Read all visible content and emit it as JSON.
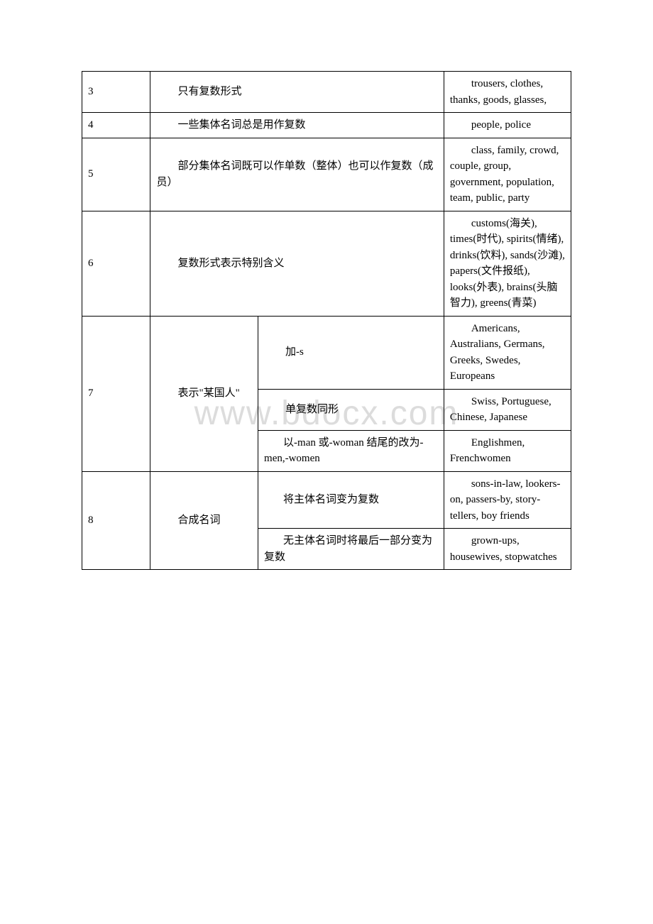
{
  "watermark": "www.bdocx.com",
  "rows": {
    "r3": {
      "num": "3",
      "rule": "只有复数形式",
      "example": "trousers, clothes, thanks, goods, glasses,"
    },
    "r4": {
      "num": "4",
      "rule": "一些集体名词总是用作复数",
      "example": "people, police"
    },
    "r5": {
      "num": "5",
      "rule": "部分集体名词既可以作单数（整体）也可以作复数（成员）",
      "example": "class, family, crowd, couple, group, government, population, team, public, party"
    },
    "r6": {
      "num": "6",
      "rule": "复数形式表示特别含义",
      "example": "customs(海关), times(时代), spirits(情绪), drinks(饮料), sands(沙滩), papers(文件报纸), looks(外表), brains(头脑智力), greens(青菜)"
    },
    "r7": {
      "num": "7",
      "rule_left": "表示\"某国人\"",
      "sub1": {
        "rule": "加-s",
        "example": "Americans, Australians, Germans, Greeks, Swedes, Europeans"
      },
      "sub2": {
        "rule": "单复数同形",
        "example": "Swiss, Portuguese, Chinese, Japanese"
      },
      "sub3": {
        "rule": "以-man 或-woman 结尾的改为-men,-women",
        "example": "Englishmen, Frenchwomen"
      }
    },
    "r8": {
      "num": "8",
      "rule_left": "合成名词",
      "sub1": {
        "rule": "将主体名词变为复数",
        "example": "sons-in-law, lookers-on, passers-by, story-tellers, boy friends"
      },
      "sub2": {
        "rule": "无主体名词时将最后一部分变为复数",
        "example": "grown-ups, housewives, stopwatches"
      }
    }
  }
}
